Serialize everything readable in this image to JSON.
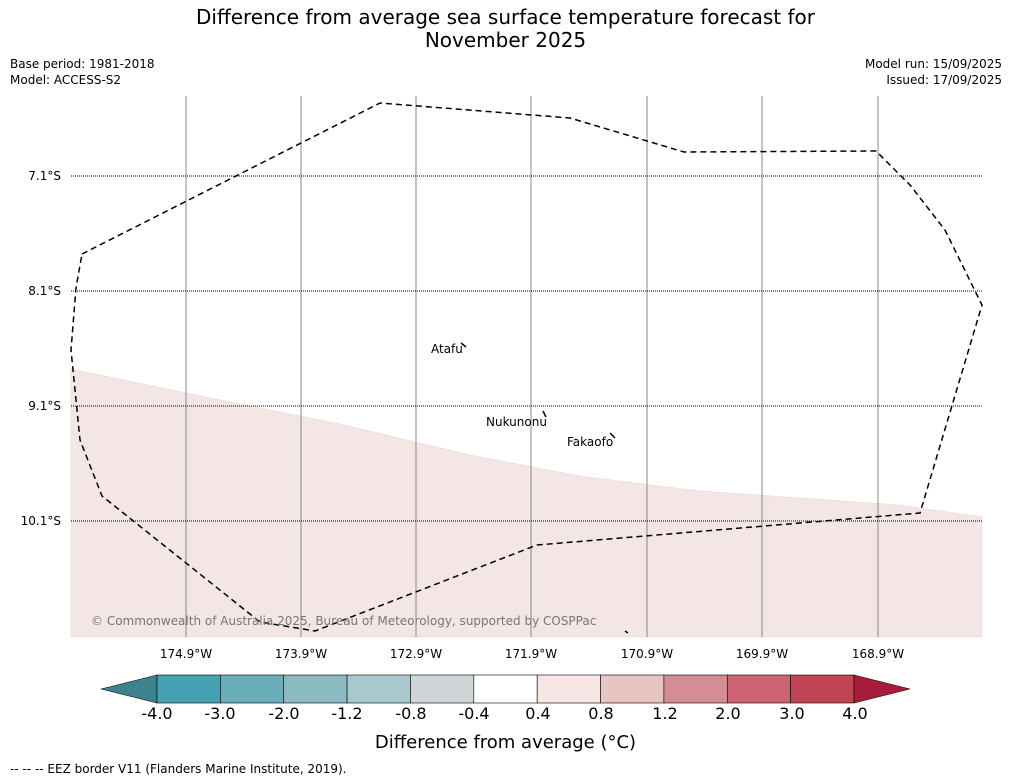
{
  "header": {
    "title_line1": "Difference from average sea surface temperature forecast for",
    "title_line2": "November 2025",
    "base_period": "Base period: 1981-2018",
    "model": "Model: ACCESS-S2",
    "model_run": "Model run: 15/09/2025",
    "issued": "Issued: 17/09/2025"
  },
  "map": {
    "lat_labels": [
      "7.1°S",
      "8.1°S",
      "9.1°S",
      "10.1°S"
    ],
    "lon_labels": [
      "174.9°W",
      "173.9°W",
      "172.9°W",
      "171.9°W",
      "170.9°W",
      "169.9°W",
      "168.9°W"
    ],
    "places": [
      "Atafu",
      "Nukunonu",
      "Fakaofo"
    ],
    "anomaly_band_color": "#f4e6e5",
    "border_style": "dashed",
    "copyright": "© Commonwealth of Australia 2025, Bureau of Meteorology, supported by COSPPac"
  },
  "colorbar": {
    "ticks": [
      "-4.0",
      "-3.0",
      "-2.0",
      "-1.2",
      "-0.8",
      "-0.4",
      "0.4",
      "0.8",
      "1.2",
      "2.0",
      "3.0",
      "4.0"
    ],
    "colors": [
      "#3d838d",
      "#44a2b2",
      "#6aaeba",
      "#8cbac3",
      "#a9c9ce",
      "#d0d6d8",
      "#ffffff",
      "#f8e6e5",
      "#e8c5c2",
      "#d58d95",
      "#cb6470",
      "#c04453",
      "#a81c3a"
    ],
    "label": "Difference from average (°C)"
  },
  "footnote": "-- -- -- EEZ border V11 (Flanders Marine Institute, 2019)."
}
